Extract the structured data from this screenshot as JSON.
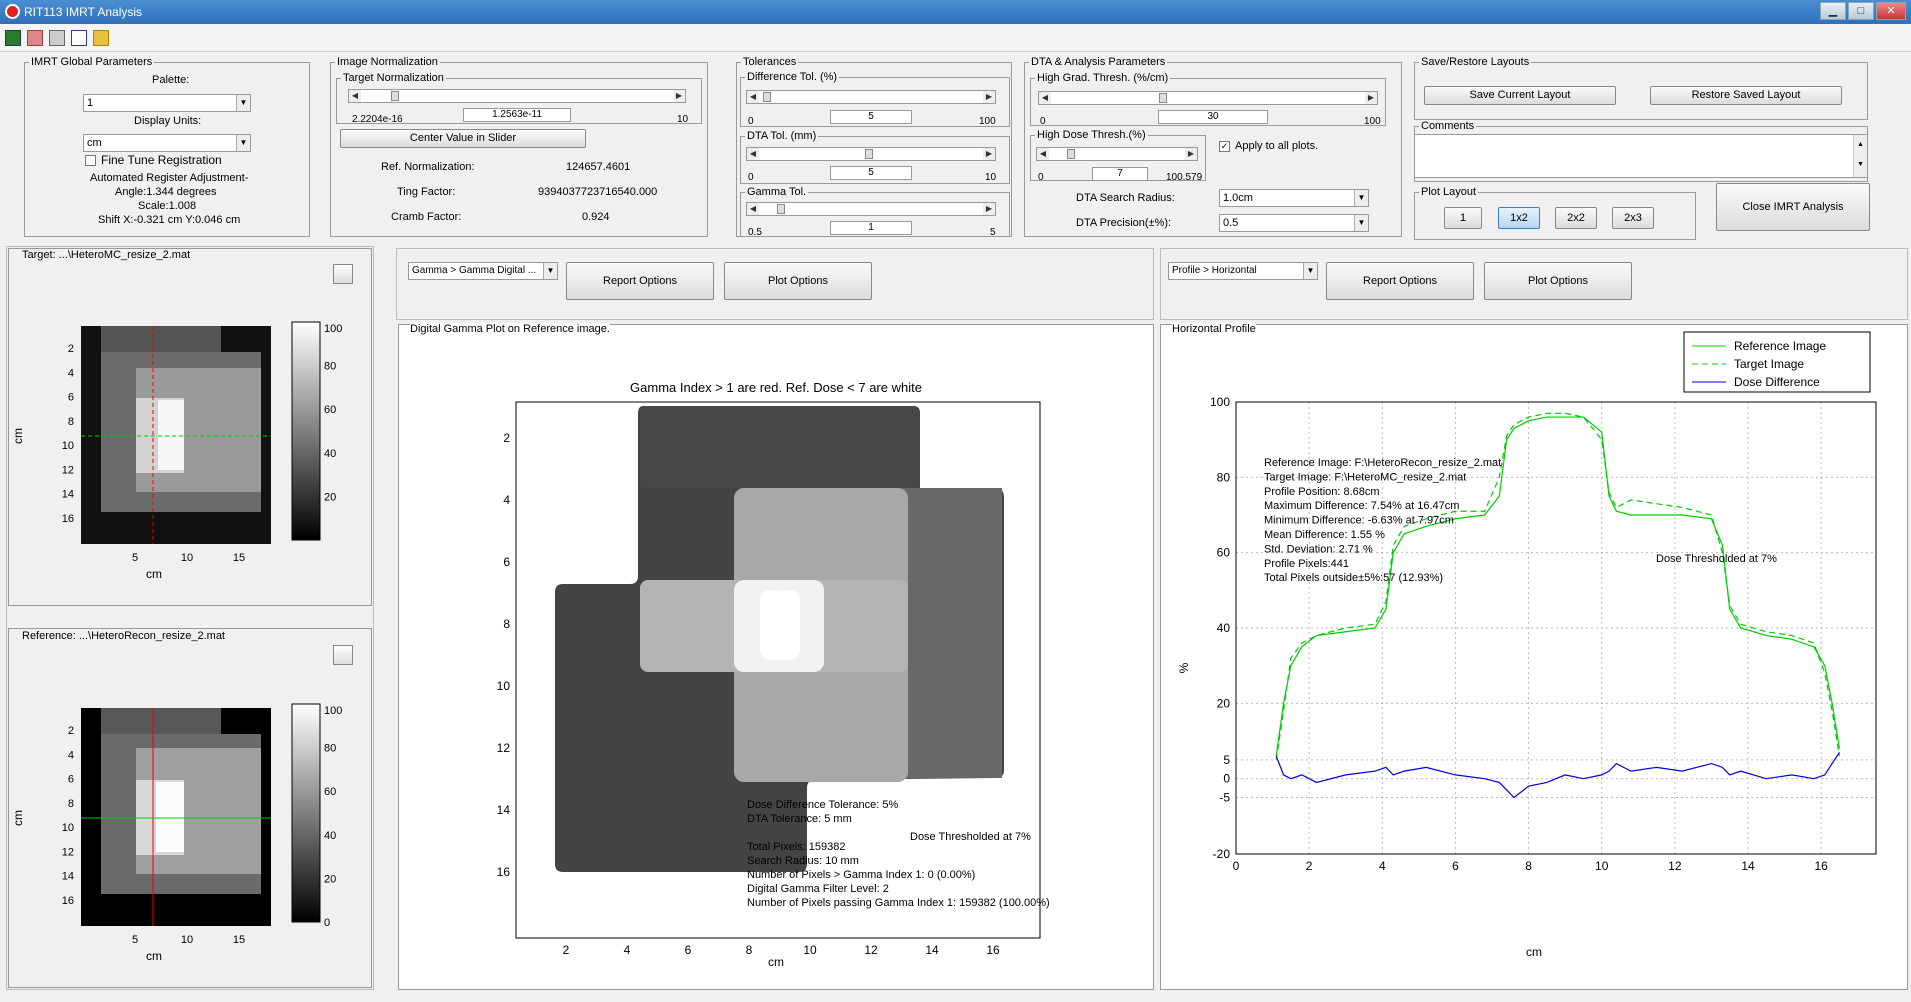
{
  "window": {
    "title": "RIT113 IMRT Analysis",
    "min": "▁",
    "max": "□",
    "close": "✕"
  },
  "global": {
    "legend": "IMRT Global Parameters",
    "palette_label": "Palette:",
    "palette_value": "1",
    "units_label": "Display Units:",
    "units_value": "cm",
    "fine_tune": "Fine Tune Registration",
    "auto_reg": "Automated Register Adjustment-",
    "angle": "Angle:1.344 degrees",
    "scale": "Scale:1.008",
    "shift": "Shift X:-0.321 cm Y:0.046 cm"
  },
  "norm": {
    "legend": "Image Normalization",
    "target_legend": "Target Normalization",
    "slider_min": "2.2204e-16",
    "slider_val": "1.2563e-11",
    "slider_max": "10",
    "center_btn": "Center Value in Slider",
    "ref_label": "Ref. Normalization:",
    "ref_value": "124657.4601",
    "ting_label": "Ting Factor:",
    "ting_value": "9394037723716540.000",
    "cramb_label": "Cramb Factor:",
    "cramb_value": "0.924"
  },
  "tol": {
    "legend": "Tolerances",
    "diff_legend": "Difference Tol. (%)",
    "diff_min": "0",
    "diff_val": "5",
    "diff_max": "100",
    "dta_legend": "DTA Tol. (mm)",
    "dta_min": "0",
    "dta_val": "5",
    "dta_max": "10",
    "gamma_legend": "Gamma Tol.",
    "gamma_min": "0.5",
    "gamma_val": "1",
    "gamma_max": "5"
  },
  "dta": {
    "legend": "DTA & Analysis Parameters",
    "hg_legend": "High Grad. Thresh. (%/cm)",
    "hg_min": "0",
    "hg_val": "30",
    "hg_max": "100",
    "hd_legend": "High Dose Thresh.(%)",
    "hd_min": "0",
    "hd_val": "7",
    "hd_max": "100.579",
    "apply_all": "Apply to all plots.",
    "radius_label": "DTA Search Radius:",
    "radius_value": "1.0cm",
    "precision_label": "DTA Precision(±%):",
    "precision_value": "0.5"
  },
  "layouts": {
    "legend": "Save/Restore Layouts",
    "save": "Save Current Layout",
    "restore": "Restore Saved Layout",
    "comments_legend": "Comments",
    "plot_layout_legend": "Plot Layout",
    "options": [
      "1",
      "1x2",
      "2x2",
      "2x3"
    ],
    "selected": "1x2",
    "close": "Close IMRT Analysis"
  },
  "target_panel": {
    "title": "Target: ...\\HeteroMC_resize_2.mat"
  },
  "reference_panel": {
    "title": "Reference: ...\\HeteroRecon_resize_2.mat"
  },
  "thumb_axes": {
    "yticks": [
      "2",
      "4",
      "6",
      "8",
      "10",
      "12",
      "14",
      "16"
    ],
    "xticks": [
      "5",
      "10",
      "15"
    ],
    "xlabel": "cm",
    "ylabel": "cm",
    "cbar_ticks": [
      "100",
      "80",
      "60",
      "40",
      "20"
    ],
    "cbar_ticks_ref": [
      "100",
      "80",
      "60",
      "40",
      "20",
      "0"
    ]
  },
  "gamma": {
    "dropdown": "Gamma > Gamma Digital ...",
    "report_btn": "Report Options",
    "plot_btn": "Plot Options",
    "panel_title": "Digital Gamma Plot on Reference image.",
    "plot_title": "Gamma Index > 1 are red. Ref. Dose < 7 are white",
    "yticks": [
      "2",
      "4",
      "6",
      "8",
      "10",
      "12",
      "14",
      "16"
    ],
    "xticks": [
      "2",
      "4",
      "6",
      "8",
      "10",
      "12",
      "14",
      "16"
    ],
    "xlabel": "cm",
    "info": [
      "Dose Difference Tolerance: 5%",
      "DTA Tolerance: 5 mm",
      "",
      "Total Pixels: 159382",
      "Search Radius: 10 mm",
      "Number of Pixels > Gamma Index 1: 0 (0.00%)",
      "Digital Gamma Filter Level: 2",
      "Number of Pixels passing Gamma Index 1: 159382 (100.00%)"
    ],
    "threshold_note": "Dose Thresholded at 7%"
  },
  "profile": {
    "dropdown": "Profile > Horizontal",
    "report_btn": "Report Options",
    "plot_btn": "Plot Options",
    "panel_title": "Horizontal Profile",
    "legend": [
      "Reference Image",
      "Target Image",
      "Dose Difference"
    ],
    "info": [
      "Reference Image: F:\\HeteroRecon_resize_2.mat",
      "Target Image: F:\\HeteroMC_resize_2.mat",
      "Profile Position: 8.68cm",
      "Maximum Difference: 7.54% at 16.47cm",
      "Minimum Difference: -6.63% at 7.97cm",
      "Mean Difference: 1.55 %",
      "Std. Deviation: 2.71 %",
      "Profile Pixels:441",
      "Total Pixels outside±5%:57 (12.93%)"
    ],
    "threshold_note": "Dose Thresholded at 7%",
    "xlabel": "cm",
    "ylabel": "%",
    "colors": {
      "reference": "#00cc00",
      "target": "#00cc00",
      "difference": "#0000dd"
    }
  },
  "chart_data": {
    "type": "line",
    "xlabel": "cm",
    "ylabel": "%",
    "xlim": [
      0,
      17.5
    ],
    "ylim": [
      -20,
      100
    ],
    "xticks": [
      0,
      2,
      4,
      6,
      8,
      10,
      12,
      14,
      16
    ],
    "yticks": [
      -20,
      -5,
      0,
      5,
      20,
      40,
      60,
      80,
      100
    ],
    "grid": true,
    "legend_position": "top-right",
    "x": [
      1.1,
      1.3,
      1.5,
      1.8,
      2.2,
      3.0,
      3.8,
      4.1,
      4.3,
      4.6,
      5.2,
      6.0,
      6.8,
      7.2,
      7.4,
      7.6,
      8.0,
      8.5,
      9.0,
      9.5,
      10.0,
      10.2,
      10.4,
      10.8,
      11.5,
      12.2,
      13.0,
      13.3,
      13.5,
      13.8,
      14.5,
      15.2,
      15.8,
      16.1,
      16.3,
      16.5
    ],
    "series": [
      {
        "name": "Reference Image",
        "values": [
          6,
          20,
          30,
          35,
          38,
          39,
          40,
          45,
          60,
          65,
          67,
          69,
          70,
          75,
          90,
          93,
          95,
          96,
          96,
          96,
          92,
          75,
          71,
          70,
          70,
          70,
          69,
          62,
          45,
          40,
          38,
          37,
          35,
          30,
          20,
          8
        ]
      },
      {
        "name": "Target Image",
        "values": [
          5,
          18,
          32,
          36,
          38,
          40,
          41,
          47,
          62,
          67,
          69,
          71,
          71,
          80,
          91,
          94,
          96,
          97,
          97,
          96,
          90,
          76,
          72,
          74,
          73,
          72,
          70,
          60,
          46,
          41,
          39,
          38,
          36,
          28,
          18,
          6
        ]
      },
      {
        "name": "Dose Difference",
        "values": [
          6,
          1,
          0,
          1,
          -1,
          1,
          2,
          3,
          1,
          2,
          3,
          1,
          0,
          -1,
          -3,
          -5,
          -2,
          -1,
          1,
          0,
          1,
          2,
          4,
          2,
          3,
          2,
          4,
          3,
          1,
          2,
          0,
          1,
          0,
          1,
          4,
          7
        ]
      }
    ]
  }
}
